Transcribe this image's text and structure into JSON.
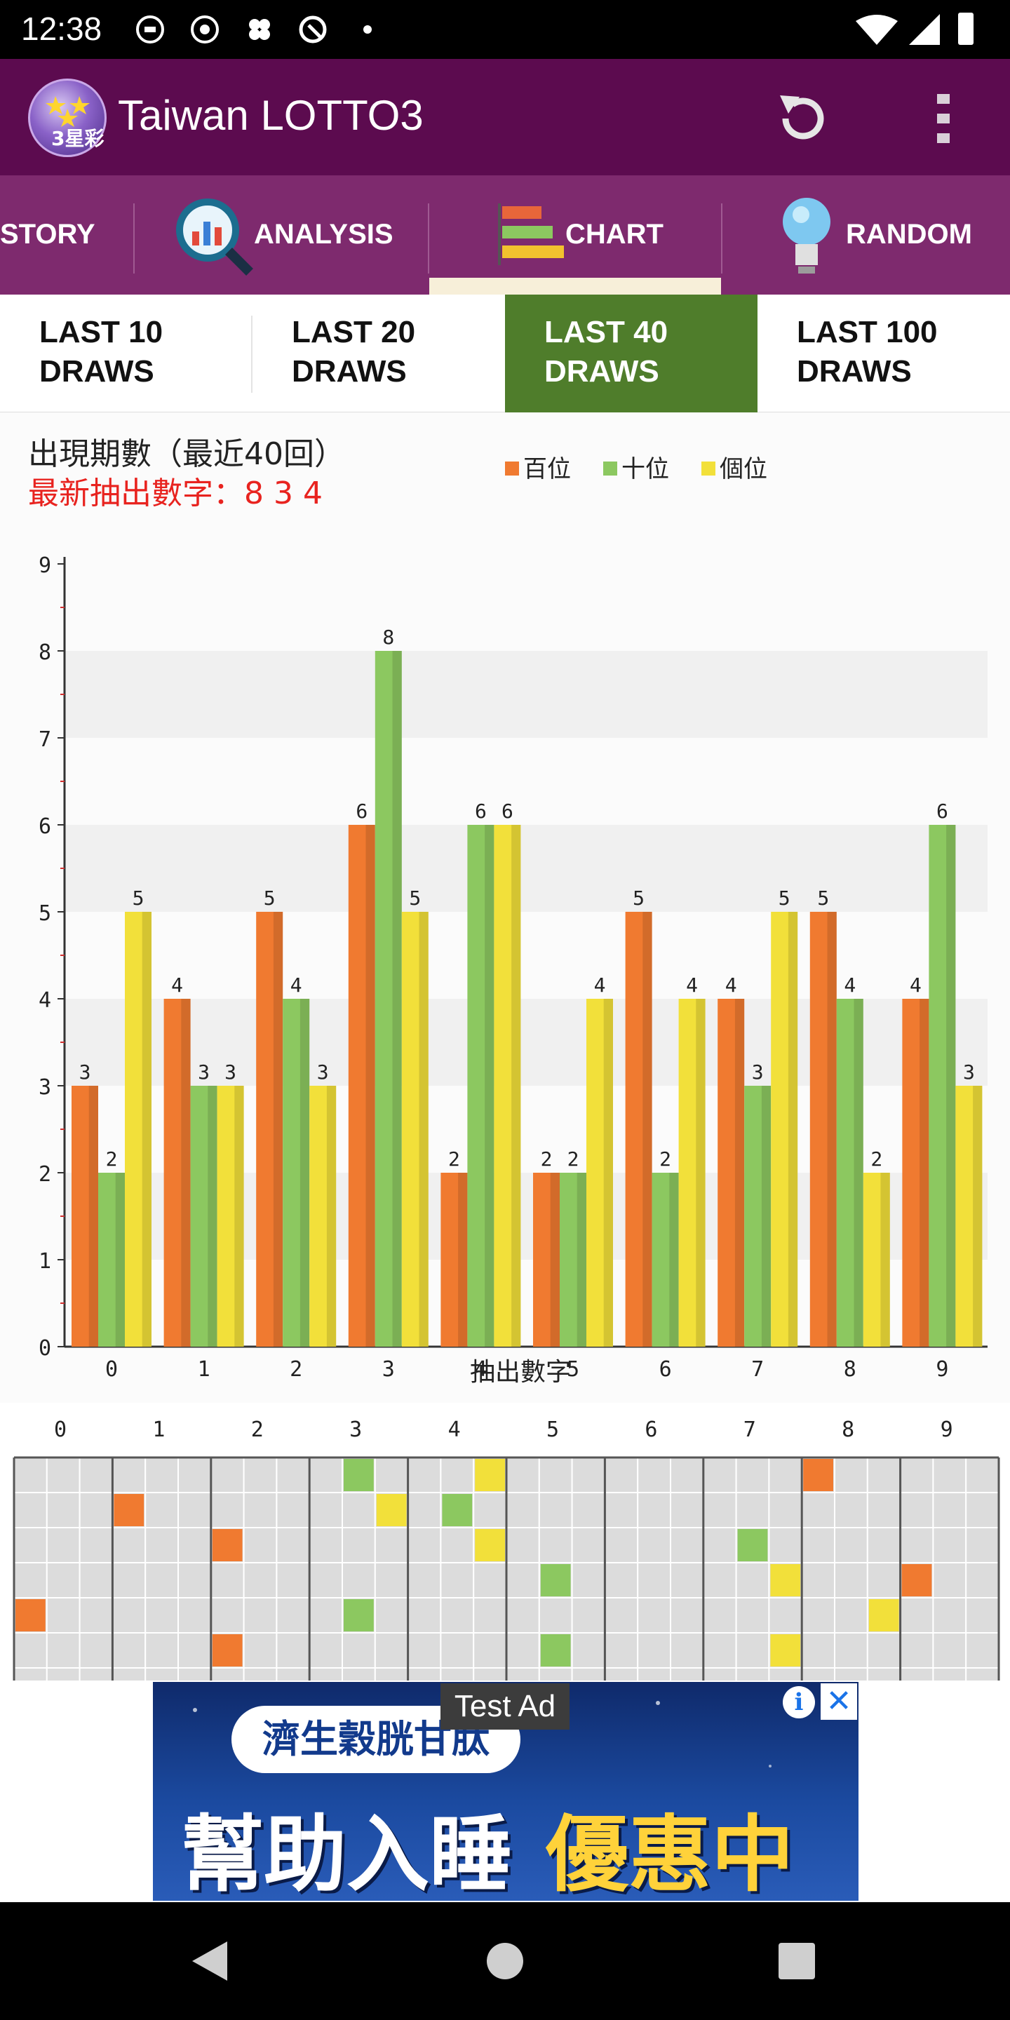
{
  "status_bar": {
    "time": "12:38"
  },
  "app_bar": {
    "title": "Taiwan LOTTO3"
  },
  "main_tabs": [
    {
      "label": "STORY",
      "icon": "history-icon"
    },
    {
      "label": "ANALYSIS",
      "icon": "magnifier-chart-icon"
    },
    {
      "label": "CHART",
      "icon": "bar-chart-icon",
      "active": true
    },
    {
      "label": "RANDOM",
      "icon": "lightbulb-icon"
    }
  ],
  "sub_tabs": [
    {
      "line1": "LAST 10",
      "line2": "DRAWS"
    },
    {
      "line1": "LAST 20",
      "line2": "DRAWS"
    },
    {
      "line1": "LAST 40",
      "line2": "DRAWS",
      "active": true
    },
    {
      "line1": "LAST 100",
      "line2": "DRAWS"
    }
  ],
  "chart_data": {
    "type": "bar",
    "title": "出現期數（最近40回）",
    "subtitle": "最新抽出數字：8 3 4",
    "xlabel": "抽出數字",
    "ylabel": "",
    "categories": [
      "0",
      "1",
      "2",
      "3",
      "4",
      "5",
      "6",
      "7",
      "8",
      "9"
    ],
    "ylim": [
      0,
      9
    ],
    "yticks": [
      0,
      1,
      2,
      3,
      4,
      5,
      6,
      7,
      8,
      9
    ],
    "legend_position": "top",
    "series": [
      {
        "name": "百位",
        "color": "#f07a30",
        "values": [
          3,
          4,
          5,
          6,
          2,
          2,
          5,
          4,
          5,
          4
        ]
      },
      {
        "name": "十位",
        "color": "#8cc860",
        "values": [
          2,
          3,
          4,
          8,
          6,
          2,
          2,
          3,
          4,
          6
        ]
      },
      {
        "name": "個位",
        "color": "#f2e03a",
        "values": [
          5,
          3,
          3,
          5,
          6,
          4,
          4,
          5,
          2,
          3
        ]
      }
    ]
  },
  "grid": {
    "headers": [
      "0",
      "1",
      "2",
      "3",
      "4",
      "5",
      "6",
      "7",
      "8",
      "9"
    ],
    "rows": [
      [
        8,
        3,
        4
      ],
      [
        1,
        4,
        3
      ],
      [
        2,
        7,
        4
      ],
      [
        9,
        5,
        7
      ],
      [
        0,
        3,
        8
      ],
      [
        2,
        5,
        7
      ]
    ]
  },
  "ad": {
    "test_label": "Test Ad",
    "tag": "濟生穀胱甘肽",
    "line1": "幫助入睡",
    "line2": "優惠中",
    "info": "i",
    "close": "✕"
  }
}
